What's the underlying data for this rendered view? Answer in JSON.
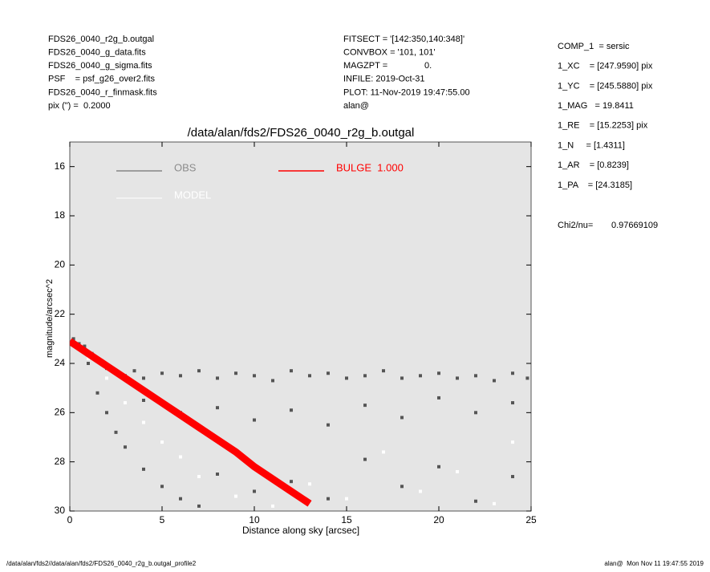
{
  "header": {
    "left": [
      "FDS26_0040_r2g_b.outgal",
      "FDS26_0040_g_data.fits",
      "FDS26_0040_g_sigma.fits",
      "PSF    = psf_g26_over2.fits",
      "FDS26_0040_r_finmask.fits",
      "pix (\") =  0.2000"
    ],
    "middle": [
      "FITSECT = '[142:350,140:348]'",
      "CONVBOX = '101, 101'",
      "MAGZPT =               0.",
      "INFILE: 2019-Oct-31",
      "PLOT: 11-Nov-2019 19:47:55.00",
      "alan@"
    ],
    "right": [
      "COMP_1  = sersic",
      "1_XC    = [247.9590] pix",
      "1_YC    = [245.5880] pix",
      "1_MAG   = 19.8411",
      "1_RE    = [15.2253] pix",
      "1_N     = [1.4311]",
      "1_AR    = [0.8239]",
      "1_PA    = [24.3185]"
    ],
    "chi2_label": "Chi2/nu=",
    "chi2_value": "0.97669109"
  },
  "footer": {
    "left": "/data/alan/fds2//data/alan/fds2/FDS26_0040_r2g_b.outgal_profile2",
    "right": "alan@  Mon Nov 11 19:47:55 2019"
  },
  "chart_data": {
    "type": "scatter",
    "title": "/data/alan/fds2/FDS26_0040_r2g_b.outgal",
    "x_label": "Distance along sky [arcsec]",
    "y_label": "magnitude/arcsec^2",
    "xlim": [
      0,
      25
    ],
    "ylim": [
      30,
      15
    ],
    "xticks": [
      0,
      5,
      10,
      15,
      20,
      25
    ],
    "yticks": [
      16,
      18,
      20,
      22,
      24,
      26,
      28,
      30
    ],
    "background": "#e5e5e5",
    "series": [
      {
        "name": "OBS",
        "color": "#555555",
        "type": "scatter",
        "x": [
          0.2,
          0.5,
          0.8,
          1.2,
          1.6,
          2.0,
          2.5,
          3,
          3.5,
          4,
          5,
          6,
          7,
          8,
          9,
          10,
          11,
          12,
          13,
          14,
          15,
          16,
          17,
          18,
          19,
          20,
          21,
          22,
          23,
          24,
          24.8,
          1,
          1.5,
          2,
          2.5,
          3,
          4,
          5,
          6,
          7,
          8,
          10,
          12,
          14,
          16,
          18,
          20,
          22,
          24,
          4,
          6,
          8,
          10,
          12,
          14,
          16,
          18,
          20,
          22,
          24
        ],
        "values": [
          23.0,
          23.2,
          23.3,
          23.6,
          23.9,
          24.2,
          24.4,
          24.5,
          24.3,
          24.6,
          24.4,
          24.5,
          24.3,
          24.6,
          24.4,
          24.5,
          24.7,
          24.3,
          24.5,
          24.4,
          24.6,
          24.5,
          24.3,
          24.6,
          24.5,
          24.4,
          24.6,
          24.5,
          24.7,
          24.4,
          24.6,
          24.0,
          25.2,
          26.0,
          26.8,
          27.4,
          28.3,
          29.0,
          29.5,
          29.8,
          28.5,
          29.2,
          28.8,
          29.5,
          27.9,
          29.0,
          28.2,
          29.6,
          28.6,
          25.5,
          26.0,
          25.8,
          26.3,
          25.9,
          26.5,
          25.7,
          26.2,
          25.4,
          26.0,
          25.6
        ]
      },
      {
        "name": "MODEL",
        "color": "#ffffff",
        "type": "scatter",
        "x": [
          1,
          2,
          3,
          4,
          5,
          6,
          7,
          9,
          11,
          13,
          15,
          17,
          19,
          21,
          23,
          24
        ],
        "values": [
          23.8,
          24.6,
          25.6,
          26.4,
          27.2,
          27.8,
          28.6,
          29.4,
          29.8,
          28.9,
          29.5,
          27.6,
          29.2,
          28.4,
          29.7,
          27.2
        ]
      },
      {
        "name": "BULGE  1.000",
        "color": "#ff0000",
        "type": "line",
        "x": [
          0,
          1,
          2,
          3,
          4,
          5,
          6,
          7,
          8,
          9,
          10,
          11,
          12,
          13
        ],
        "values": [
          23.1,
          23.6,
          24.1,
          24.6,
          25.1,
          25.6,
          26.1,
          26.6,
          27.1,
          27.6,
          28.2,
          28.7,
          29.2,
          29.7
        ]
      }
    ]
  }
}
